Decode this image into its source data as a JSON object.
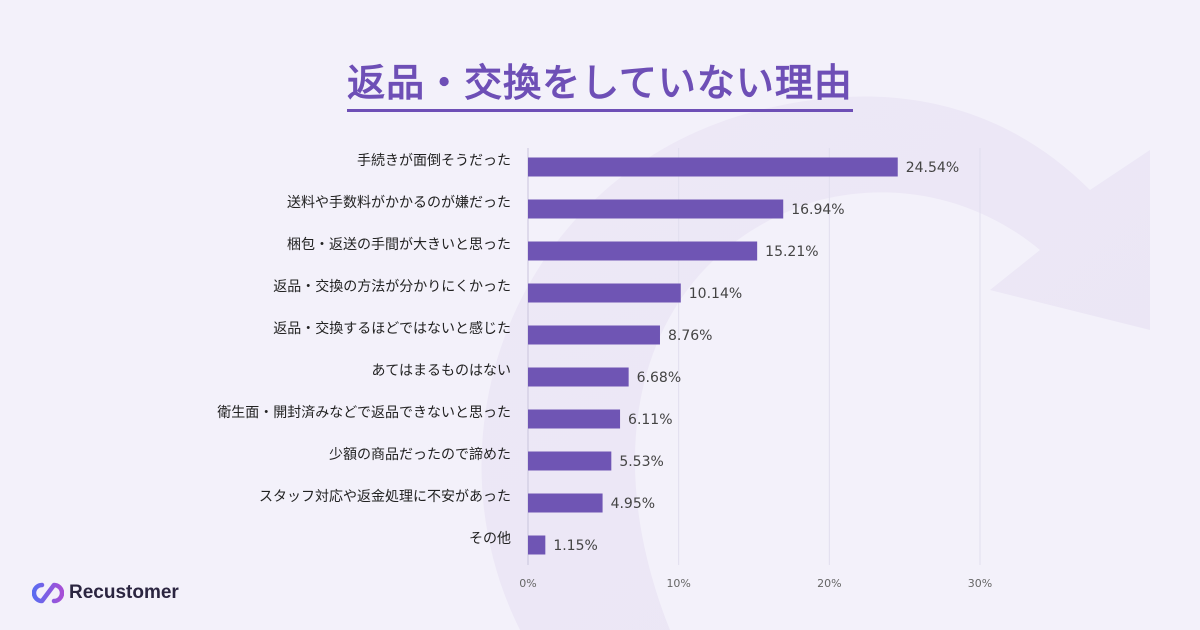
{
  "title": "返品・交換をしていない理由",
  "brand": {
    "name": "Recustomer"
  },
  "colors": {
    "bar": "#6f55b4",
    "title": "#6e4fb6",
    "grid": "#e1deef"
  },
  "chart_data": {
    "type": "bar",
    "orientation": "horizontal",
    "categories": [
      "手続きが面倒そうだった",
      "送料や手数料がかかるのが嫌だった",
      "梱包・返送の手間が大きいと思った",
      "返品・交換の方法が分かりにくかった",
      "返品・交換するほどではないと感じた",
      "あてはまるものはない",
      "衛生面・開封済みなどで返品できないと思った",
      "少額の商品だったので諦めた",
      "スタッフ対応や返金処理に不安があった",
      "その他"
    ],
    "values": [
      24.54,
      16.94,
      15.21,
      10.14,
      8.76,
      6.68,
      6.11,
      5.53,
      4.95,
      1.15
    ],
    "value_labels": [
      "24.54%",
      "16.94%",
      "15.21%",
      "10.14%",
      "8.76%",
      "6.68%",
      "6.11%",
      "5.53%",
      "4.95%",
      "1.15%"
    ],
    "xlim": [
      0,
      30
    ],
    "xticks": [
      0,
      10,
      20,
      30
    ],
    "xtick_labels": [
      "0%",
      "10%",
      "20%",
      "30%"
    ],
    "grid": true,
    "legend": "none"
  }
}
